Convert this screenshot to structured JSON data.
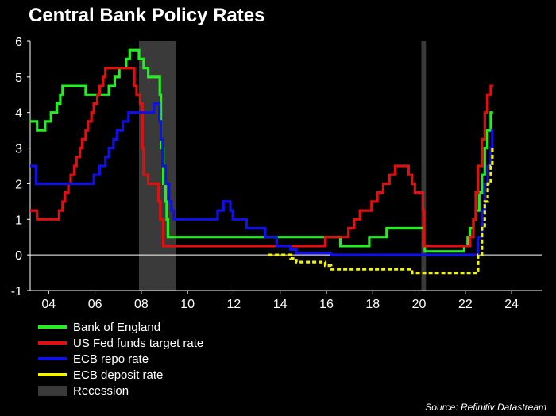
{
  "chart_data": {
    "type": "line",
    "title": "Central Bank Policy Rates",
    "source": "Source: Refinitiv Datastream",
    "xlim": [
      2003.2,
      2025.3
    ],
    "ylim": [
      -1,
      6
    ],
    "xticks": [
      2004,
      2006,
      2008,
      2010,
      2012,
      2014,
      2016,
      2018,
      2020,
      2022,
      2024
    ],
    "xtick_labels": [
      "04",
      "06",
      "08",
      "10",
      "12",
      "14",
      "16",
      "18",
      "20",
      "22",
      "24"
    ],
    "yticks": [
      -1,
      0,
      1,
      2,
      3,
      4,
      5,
      6
    ],
    "ytick_labels": [
      "-1",
      "0",
      "1",
      "2",
      "3",
      "4",
      "5",
      "6"
    ],
    "recessions": [
      [
        2007.9,
        2009.5
      ],
      [
        2020.1,
        2020.3
      ]
    ],
    "series": [
      {
        "name": "Bank of England",
        "color": "#22ee22",
        "dash": "solid",
        "points": [
          [
            2003.2,
            3.75
          ],
          [
            2003.5,
            3.75
          ],
          [
            2003.5,
            3.5
          ],
          [
            2003.85,
            3.5
          ],
          [
            2003.85,
            3.75
          ],
          [
            2004.1,
            3.75
          ],
          [
            2004.1,
            4.0
          ],
          [
            2004.35,
            4.0
          ],
          [
            2004.35,
            4.25
          ],
          [
            2004.5,
            4.25
          ],
          [
            2004.5,
            4.5
          ],
          [
            2004.6,
            4.5
          ],
          [
            2004.6,
            4.75
          ],
          [
            2005.6,
            4.75
          ],
          [
            2005.6,
            4.5
          ],
          [
            2006.6,
            4.5
          ],
          [
            2006.6,
            4.75
          ],
          [
            2006.85,
            4.75
          ],
          [
            2006.85,
            5.0
          ],
          [
            2007.05,
            5.0
          ],
          [
            2007.05,
            5.25
          ],
          [
            2007.35,
            5.25
          ],
          [
            2007.35,
            5.5
          ],
          [
            2007.5,
            5.5
          ],
          [
            2007.5,
            5.75
          ],
          [
            2007.9,
            5.75
          ],
          [
            2007.9,
            5.5
          ],
          [
            2008.1,
            5.5
          ],
          [
            2008.1,
            5.25
          ],
          [
            2008.3,
            5.25
          ],
          [
            2008.3,
            5.0
          ],
          [
            2008.8,
            5.0
          ],
          [
            2008.8,
            4.5
          ],
          [
            2008.85,
            4.5
          ],
          [
            2008.85,
            3.0
          ],
          [
            2008.95,
            3.0
          ],
          [
            2008.95,
            2.0
          ],
          [
            2009.05,
            2.0
          ],
          [
            2009.05,
            1.5
          ],
          [
            2009.1,
            1.5
          ],
          [
            2009.1,
            1.0
          ],
          [
            2009.15,
            1.0
          ],
          [
            2009.15,
            0.5
          ],
          [
            2016.6,
            0.5
          ],
          [
            2016.6,
            0.25
          ],
          [
            2017.85,
            0.25
          ],
          [
            2017.85,
            0.5
          ],
          [
            2018.6,
            0.5
          ],
          [
            2018.6,
            0.75
          ],
          [
            2020.2,
            0.75
          ],
          [
            2020.2,
            0.25
          ],
          [
            2020.25,
            0.25
          ],
          [
            2020.25,
            0.1
          ],
          [
            2021.95,
            0.1
          ],
          [
            2021.95,
            0.25
          ],
          [
            2022.1,
            0.25
          ],
          [
            2022.1,
            0.5
          ],
          [
            2022.2,
            0.5
          ],
          [
            2022.2,
            0.75
          ],
          [
            2022.35,
            0.75
          ],
          [
            2022.35,
            1.0
          ],
          [
            2022.45,
            1.0
          ],
          [
            2022.45,
            1.25
          ],
          [
            2022.6,
            1.25
          ],
          [
            2022.6,
            1.75
          ],
          [
            2022.72,
            1.75
          ],
          [
            2022.72,
            2.25
          ],
          [
            2022.84,
            2.25
          ],
          [
            2022.84,
            3.0
          ],
          [
            2022.95,
            3.0
          ],
          [
            2022.95,
            3.5
          ],
          [
            2023.1,
            3.5
          ],
          [
            2023.1,
            4.0
          ],
          [
            2023.2,
            4.0
          ]
        ]
      },
      {
        "name": "US Fed funds target rate",
        "color": "#e01010",
        "dash": "solid",
        "points": [
          [
            2003.2,
            1.25
          ],
          [
            2003.5,
            1.25
          ],
          [
            2003.5,
            1.0
          ],
          [
            2004.45,
            1.0
          ],
          [
            2004.45,
            1.25
          ],
          [
            2004.6,
            1.25
          ],
          [
            2004.6,
            1.5
          ],
          [
            2004.7,
            1.5
          ],
          [
            2004.7,
            1.75
          ],
          [
            2004.85,
            1.75
          ],
          [
            2004.85,
            2.0
          ],
          [
            2004.95,
            2.0
          ],
          [
            2004.95,
            2.25
          ],
          [
            2005.1,
            2.25
          ],
          [
            2005.1,
            2.5
          ],
          [
            2005.2,
            2.5
          ],
          [
            2005.2,
            2.75
          ],
          [
            2005.35,
            2.75
          ],
          [
            2005.35,
            3.0
          ],
          [
            2005.45,
            3.0
          ],
          [
            2005.45,
            3.25
          ],
          [
            2005.6,
            3.25
          ],
          [
            2005.6,
            3.5
          ],
          [
            2005.7,
            3.5
          ],
          [
            2005.7,
            3.75
          ],
          [
            2005.85,
            3.75
          ],
          [
            2005.85,
            4.0
          ],
          [
            2005.95,
            4.0
          ],
          [
            2005.95,
            4.25
          ],
          [
            2006.1,
            4.25
          ],
          [
            2006.1,
            4.5
          ],
          [
            2006.2,
            4.5
          ],
          [
            2006.2,
            4.75
          ],
          [
            2006.35,
            4.75
          ],
          [
            2006.35,
            5.0
          ],
          [
            2006.45,
            5.0
          ],
          [
            2006.45,
            5.25
          ],
          [
            2007.7,
            5.25
          ],
          [
            2007.7,
            4.75
          ],
          [
            2007.8,
            4.75
          ],
          [
            2007.8,
            4.5
          ],
          [
            2007.95,
            4.5
          ],
          [
            2007.95,
            4.25
          ],
          [
            2008.05,
            4.25
          ],
          [
            2008.05,
            3.0
          ],
          [
            2008.1,
            3.0
          ],
          [
            2008.1,
            2.25
          ],
          [
            2008.3,
            2.25
          ],
          [
            2008.3,
            2.0
          ],
          [
            2008.75,
            2.0
          ],
          [
            2008.75,
            1.5
          ],
          [
            2008.82,
            1.5
          ],
          [
            2008.82,
            1.0
          ],
          [
            2008.95,
            1.0
          ],
          [
            2008.95,
            0.25
          ],
          [
            2015.95,
            0.25
          ],
          [
            2015.95,
            0.5
          ],
          [
            2016.95,
            0.5
          ],
          [
            2016.95,
            0.75
          ],
          [
            2017.2,
            0.75
          ],
          [
            2017.2,
            1.0
          ],
          [
            2017.45,
            1.0
          ],
          [
            2017.45,
            1.25
          ],
          [
            2017.95,
            1.25
          ],
          [
            2017.95,
            1.5
          ],
          [
            2018.2,
            1.5
          ],
          [
            2018.2,
            1.75
          ],
          [
            2018.45,
            1.75
          ],
          [
            2018.45,
            2.0
          ],
          [
            2018.72,
            2.0
          ],
          [
            2018.72,
            2.25
          ],
          [
            2018.97,
            2.25
          ],
          [
            2018.97,
            2.5
          ],
          [
            2019.55,
            2.5
          ],
          [
            2019.55,
            2.25
          ],
          [
            2019.7,
            2.25
          ],
          [
            2019.7,
            2.0
          ],
          [
            2019.82,
            2.0
          ],
          [
            2019.82,
            1.75
          ],
          [
            2020.17,
            1.75
          ],
          [
            2020.17,
            1.25
          ],
          [
            2020.21,
            1.25
          ],
          [
            2020.21,
            0.25
          ],
          [
            2022.2,
            0.25
          ],
          [
            2022.2,
            0.5
          ],
          [
            2022.35,
            0.5
          ],
          [
            2022.35,
            1.0
          ],
          [
            2022.45,
            1.0
          ],
          [
            2022.45,
            1.75
          ],
          [
            2022.55,
            1.75
          ],
          [
            2022.55,
            2.5
          ],
          [
            2022.72,
            2.5
          ],
          [
            2022.72,
            3.25
          ],
          [
            2022.84,
            3.25
          ],
          [
            2022.84,
            4.0
          ],
          [
            2022.95,
            4.0
          ],
          [
            2022.95,
            4.5
          ],
          [
            2023.1,
            4.5
          ],
          [
            2023.1,
            4.75
          ],
          [
            2023.2,
            4.75
          ]
        ]
      },
      {
        "name": "ECB repo rate",
        "color": "#1010e8",
        "dash": "solid",
        "points": [
          [
            2003.2,
            2.5
          ],
          [
            2003.45,
            2.5
          ],
          [
            2003.45,
            2.0
          ],
          [
            2005.95,
            2.0
          ],
          [
            2005.95,
            2.25
          ],
          [
            2006.2,
            2.25
          ],
          [
            2006.2,
            2.5
          ],
          [
            2006.45,
            2.5
          ],
          [
            2006.45,
            2.75
          ],
          [
            2006.6,
            2.75
          ],
          [
            2006.6,
            3.0
          ],
          [
            2006.8,
            3.0
          ],
          [
            2006.8,
            3.25
          ],
          [
            2006.95,
            3.25
          ],
          [
            2006.95,
            3.5
          ],
          [
            2007.2,
            3.5
          ],
          [
            2007.2,
            3.75
          ],
          [
            2007.45,
            3.75
          ],
          [
            2007.45,
            4.0
          ],
          [
            2008.55,
            4.0
          ],
          [
            2008.55,
            4.25
          ],
          [
            2008.78,
            4.25
          ],
          [
            2008.78,
            3.75
          ],
          [
            2008.85,
            3.75
          ],
          [
            2008.85,
            3.25
          ],
          [
            2008.92,
            3.25
          ],
          [
            2008.92,
            2.5
          ],
          [
            2009.05,
            2.5
          ],
          [
            2009.05,
            2.0
          ],
          [
            2009.2,
            2.0
          ],
          [
            2009.2,
            1.5
          ],
          [
            2009.3,
            1.5
          ],
          [
            2009.3,
            1.25
          ],
          [
            2009.4,
            1.25
          ],
          [
            2009.4,
            1.0
          ],
          [
            2011.3,
            1.0
          ],
          [
            2011.3,
            1.25
          ],
          [
            2011.55,
            1.25
          ],
          [
            2011.55,
            1.5
          ],
          [
            2011.85,
            1.5
          ],
          [
            2011.85,
            1.25
          ],
          [
            2011.95,
            1.25
          ],
          [
            2011.95,
            1.0
          ],
          [
            2012.55,
            1.0
          ],
          [
            2012.55,
            0.75
          ],
          [
            2013.35,
            0.75
          ],
          [
            2013.35,
            0.5
          ],
          [
            2013.85,
            0.5
          ],
          [
            2013.85,
            0.25
          ],
          [
            2014.45,
            0.25
          ],
          [
            2014.45,
            0.15
          ],
          [
            2014.7,
            0.15
          ],
          [
            2014.7,
            0.05
          ],
          [
            2016.2,
            0.05
          ],
          [
            2016.2,
            0.0
          ],
          [
            2022.55,
            0.0
          ],
          [
            2022.55,
            0.5
          ],
          [
            2022.72,
            0.5
          ],
          [
            2022.72,
            1.25
          ],
          [
            2022.84,
            1.25
          ],
          [
            2022.84,
            2.0
          ],
          [
            2022.97,
            2.0
          ],
          [
            2022.97,
            2.5
          ],
          [
            2023.1,
            2.5
          ],
          [
            2023.1,
            3.0
          ],
          [
            2023.17,
            3.0
          ],
          [
            2023.17,
            3.5
          ],
          [
            2023.22,
            3.5
          ]
        ]
      },
      {
        "name": "ECB deposit rate",
        "color": "#f2f20a",
        "dash": "dashed",
        "points": [
          [
            2013.5,
            0.0
          ],
          [
            2014.45,
            0.0
          ],
          [
            2014.45,
            -0.1
          ],
          [
            2014.7,
            -0.1
          ],
          [
            2014.7,
            -0.2
          ],
          [
            2015.95,
            -0.2
          ],
          [
            2015.95,
            -0.3
          ],
          [
            2016.2,
            -0.3
          ],
          [
            2016.2,
            -0.4
          ],
          [
            2019.7,
            -0.4
          ],
          [
            2019.7,
            -0.5
          ],
          [
            2022.55,
            -0.5
          ],
          [
            2022.55,
            0.0
          ],
          [
            2022.72,
            0.0
          ],
          [
            2022.72,
            0.75
          ],
          [
            2022.84,
            0.75
          ],
          [
            2022.84,
            1.5
          ],
          [
            2022.97,
            1.5
          ],
          [
            2022.97,
            2.0
          ],
          [
            2023.1,
            2.0
          ],
          [
            2023.1,
            2.5
          ],
          [
            2023.17,
            2.5
          ],
          [
            2023.17,
            3.0
          ],
          [
            2023.22,
            3.0
          ]
        ]
      }
    ],
    "legend": [
      {
        "label": "Bank of England",
        "color": "#22ee22",
        "kind": "line"
      },
      {
        "label": "US Fed funds target rate",
        "color": "#e01010",
        "kind": "line"
      },
      {
        "label": "ECB repo rate",
        "color": "#1010e8",
        "kind": "line"
      },
      {
        "label": "ECB deposit rate",
        "color": "#f2f20a",
        "kind": "line"
      },
      {
        "label": "Recession",
        "color": "#3a3a3a",
        "kind": "box"
      }
    ]
  }
}
